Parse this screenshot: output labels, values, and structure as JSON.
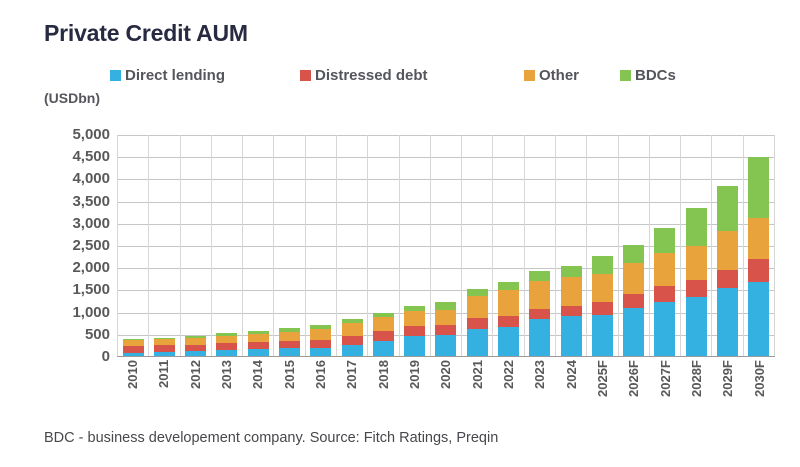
{
  "title": "Private Credit AUM",
  "unit_label": "(USDbn)",
  "footer": "BDC - business developement company. Source: Fitch Ratings, Preqin",
  "legend": [
    {
      "label": "Direct lending",
      "color": "#35b1e1"
    },
    {
      "label": "Distressed debt",
      "color": "#d8544b"
    },
    {
      "label": "Other",
      "color": "#e8a33d"
    },
    {
      "label": "BDCs",
      "color": "#84c450"
    }
  ],
  "colors": {
    "direct_lending": "#35b1e1",
    "distressed_debt": "#d8544b",
    "other": "#e8a33d",
    "bdcs": "#84c450",
    "gridline": "#c6c6c6",
    "axis_text": "#595959",
    "title_text": "#272a40"
  },
  "chart_data": {
    "type": "bar",
    "stacked": true,
    "title": "Private Credit AUM",
    "ylabel": "(USDbn)",
    "xlabel": "",
    "ylim": [
      0,
      5000
    ],
    "ytick_step": 500,
    "yticks": [
      "0",
      "500",
      "1,000",
      "1,500",
      "2,000",
      "2,500",
      "3,000",
      "3,500",
      "4,000",
      "4,500",
      "5,000"
    ],
    "grid": true,
    "legend_position": "top",
    "categories": [
      "2010",
      "2011",
      "2012",
      "2013",
      "2014",
      "2015",
      "2016",
      "2017",
      "2018",
      "2019",
      "2020",
      "2021",
      "2022",
      "2023",
      "2024",
      "2025F",
      "2026F",
      "2027F",
      "2028F",
      "2029F",
      "2030F"
    ],
    "series": [
      {
        "name": "Direct lending",
        "color": "#35b1e1",
        "values": [
          100,
          110,
          125,
          155,
          185,
          200,
          210,
          280,
          370,
          470,
          490,
          640,
          680,
          845,
          920,
          950,
          1100,
          1250,
          1350,
          1550,
          1700
        ]
      },
      {
        "name": "Distressed debt",
        "color": "#d8544b",
        "values": [
          155,
          160,
          155,
          160,
          160,
          170,
          165,
          190,
          210,
          225,
          225,
          240,
          240,
          240,
          240,
          290,
          330,
          360,
          380,
          420,
          500
        ]
      },
      {
        "name": "Other",
        "color": "#e8a33d",
        "values": [
          125,
          130,
          155,
          165,
          175,
          200,
          260,
          300,
          320,
          350,
          345,
          490,
          580,
          620,
          645,
          640,
          690,
          740,
          780,
          860,
          930
        ]
      },
      {
        "name": "BDCs",
        "color": "#84c450",
        "values": [
          20,
          20,
          45,
          60,
          70,
          80,
          85,
          90,
          100,
          115,
          190,
          170,
          200,
          225,
          255,
          400,
          410,
          550,
          840,
          1020,
          1370
        ]
      }
    ],
    "totals": [
      400,
      420,
      480,
      540,
      590,
      650,
      720,
      860,
      1000,
      1160,
      1250,
      1540,
      1700,
      1930,
      2060,
      2280,
      2530,
      2900,
      3350,
      3850,
      4500
    ]
  }
}
